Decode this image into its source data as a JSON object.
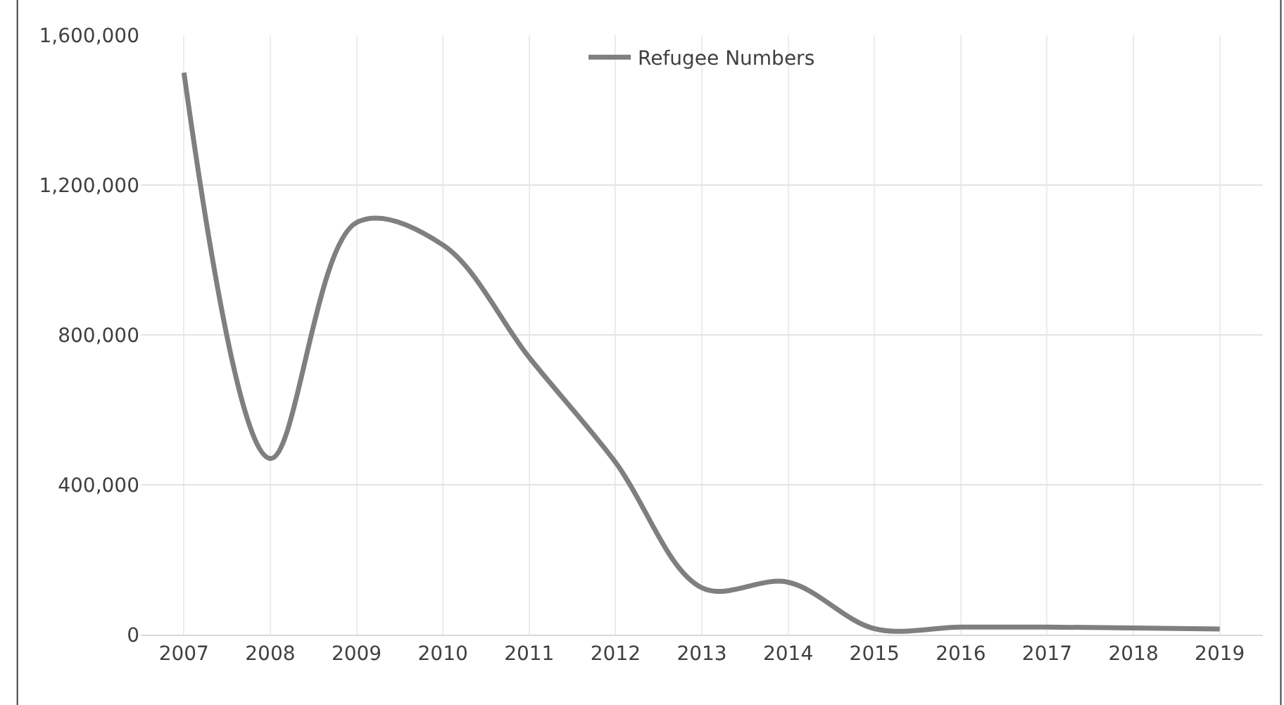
{
  "chart_data": {
    "type": "line",
    "categories": [
      "2007",
      "2008",
      "2009",
      "2010",
      "2011",
      "2012",
      "2013",
      "2014",
      "2015",
      "2016",
      "2017",
      "2018",
      "2019"
    ],
    "series": [
      {
        "name": "Refugee Numbers",
        "color": "#7f7f7f",
        "values": [
          1500000,
          470000,
          1100000,
          1040000,
          740000,
          460000,
          125000,
          140000,
          16000,
          20000,
          20000,
          18000,
          15000
        ]
      }
    ],
    "ylim": [
      0,
      1600000
    ],
    "yticks": [
      {
        "value": 0,
        "label": "0"
      },
      {
        "value": 400000,
        "label": "400,000"
      },
      {
        "value": 800000,
        "label": "800,000"
      },
      {
        "value": 1200000,
        "label": "1,200,000"
      },
      {
        "value": 1600000,
        "label": "1,600,000"
      }
    ],
    "grid": true,
    "legend": "top",
    "marker": "none",
    "line_style": "solid"
  }
}
